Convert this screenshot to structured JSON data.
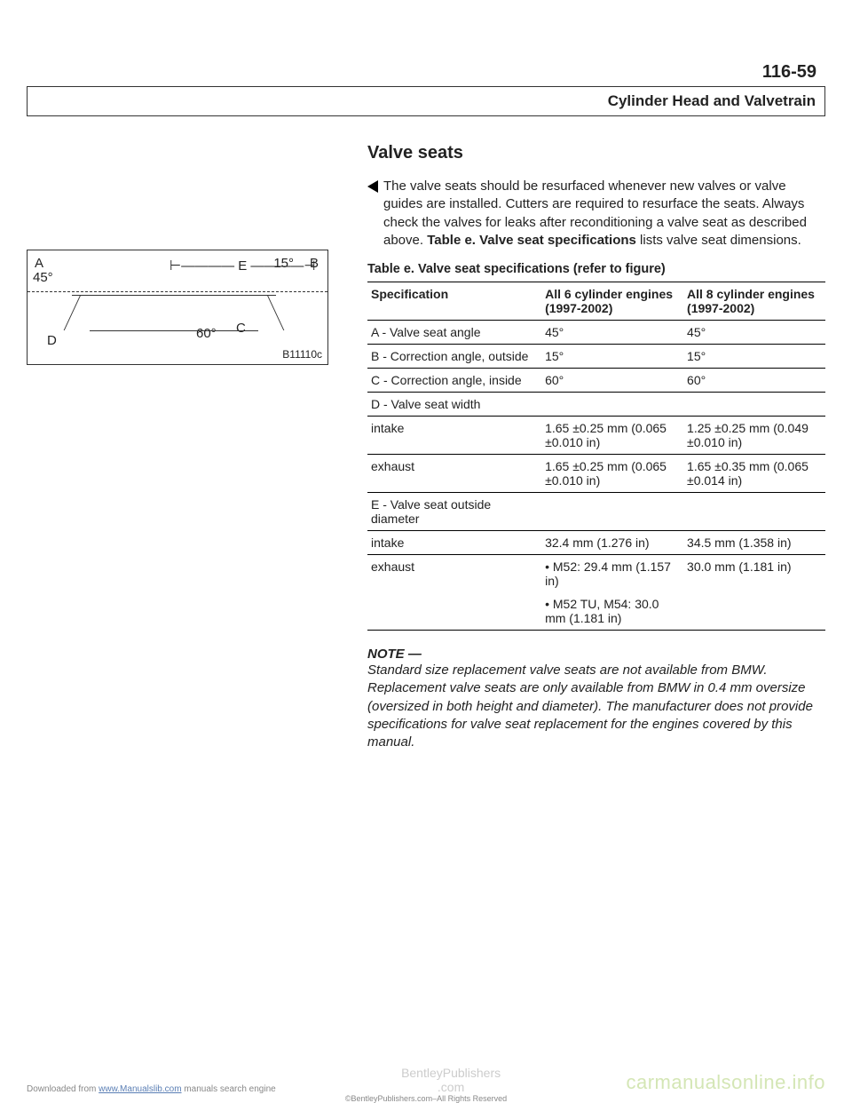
{
  "page_number": "116-59",
  "header_title": "Cylinder Head and Valvetrain",
  "section_title": "Valve seats",
  "intro_para": "The valve seats should be resurfaced whenever new valves or valve guides are installed. Cutters are required to resurface the seats. Always check the valves for leaks after reconditioning a valve seat as described above. ",
  "intro_bold1": "Table e. Valve seat specifications",
  "intro_tail": " lists valve seat dimensions.",
  "figure": {
    "labels": {
      "A": "A",
      "ang45": "45°",
      "E": "E",
      "ang15": "15°",
      "B": "B",
      "D": "D",
      "ang60": "60°",
      "C": "C"
    },
    "ref": "B11110c"
  },
  "table": {
    "title": "Table e. Valve seat specifications (refer to figure)",
    "cols": [
      "Specification",
      "All 6 cylinder engines (1997-2002)",
      "All 8 cylinder engines (1997-2002)"
    ],
    "rows": [
      {
        "c1": "A - Valve seat angle",
        "c2": "45°",
        "c3": "45°"
      },
      {
        "c1": "B - Correction angle, outside",
        "c2": "15°",
        "c3": "15°"
      },
      {
        "c1": "C - Correction angle, inside",
        "c2": "60°",
        "c3": "60°"
      },
      {
        "c1": "D - Valve seat width",
        "c2": "",
        "c3": "",
        "sub": true
      },
      {
        "c1": "intake",
        "c2": "1.65 ±0.25 mm (0.065 ±0.010 in)",
        "c3": "1.25 ±0.25 mm (0.049 ±0.010 in)"
      },
      {
        "c1": "exhaust",
        "c2": "1.65 ±0.25 mm (0.065 ±0.010 in)",
        "c3": "1.65 ±0.35 mm (0.065 ±0.014 in)"
      },
      {
        "c1": "E - Valve seat outside diameter",
        "c2": "",
        "c3": "",
        "sub": true
      },
      {
        "c1": "intake",
        "c2": "32.4 mm (1.276 in)",
        "c3": "34.5 mm (1.358 in)"
      },
      {
        "c1": "exhaust",
        "c2_bullets": [
          "M52: 29.4 mm (1.157 in)",
          "M52 TU, M54: 30.0 mm (1.181 in)"
        ],
        "c3": "30.0 mm (1.181 in)"
      }
    ]
  },
  "note_head": "NOTE —",
  "note_body": "Standard size replacement valve seats are not available from BMW. Replacement valve seats are only available from BMW in 0.4 mm oversize (oversized in both height and diameter). The manufacturer does not provide specifications for valve seat replacement for the engines covered by this manual.",
  "footer": {
    "left_pre": "Downloaded from ",
    "left_link": "www.Manualslib.com",
    "left_post": " manuals search engine",
    "center_line1": "BentleyPublishers",
    "center_line2": ".com",
    "sub": "©BentleyPublishers.com–All Rights Reserved",
    "right": "carmanualsonline.info"
  }
}
